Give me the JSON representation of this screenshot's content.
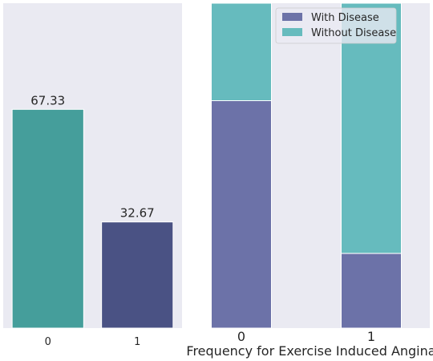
{
  "chart_data": [
    {
      "type": "bar",
      "categories": [
        "0",
        "1"
      ],
      "values": [
        67.33,
        32.67
      ],
      "data_labels": [
        "67.33",
        "32.67"
      ],
      "colors": [
        "#459e9b",
        "#4a5284"
      ],
      "ylim": [
        0,
        100
      ],
      "grid": false
    },
    {
      "type": "bar",
      "stacked": true,
      "normalized": true,
      "categories": [
        "0",
        "1"
      ],
      "series": [
        {
          "name": "With Disease",
          "values": [
            0.7,
            0.23
          ],
          "color": "#6c72a8"
        },
        {
          "name": "Without Disease",
          "values": [
            0.3,
            0.77
          ],
          "color": "#66bbbe"
        }
      ],
      "xlabel": "Frequency for Exercise Induced Angina",
      "ylim": [
        0,
        1
      ],
      "legend": "top-right",
      "grid": false
    }
  ]
}
